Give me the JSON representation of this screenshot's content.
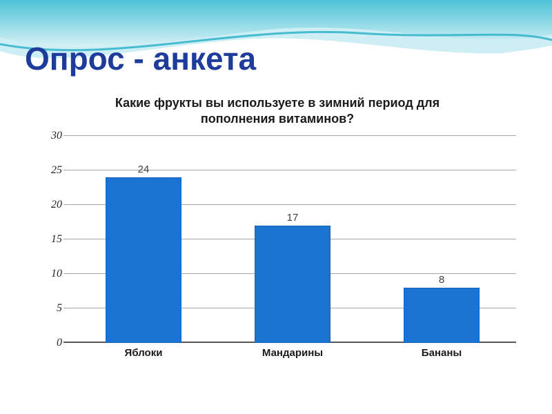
{
  "slide_title": "Опрос - анкета",
  "colors": {
    "title_text": "#1e3c9c",
    "bar_fill": "#1b74d1",
    "wave_teal": "#45c0d4",
    "wave_light": "#a8e2ec"
  },
  "chart_data": {
    "type": "bar",
    "title": "Какие фрукты вы используете в зимний период для пополнения витаминов?",
    "categories": [
      "Яблоки",
      "Мандарины",
      "Бананы"
    ],
    "values": [
      24,
      17,
      8
    ],
    "y_ticks": [
      0,
      5,
      10,
      15,
      20,
      25,
      30
    ],
    "ylim": [
      0,
      30
    ],
    "grid": true,
    "legend": false,
    "bar_color": "#1b74d1"
  }
}
